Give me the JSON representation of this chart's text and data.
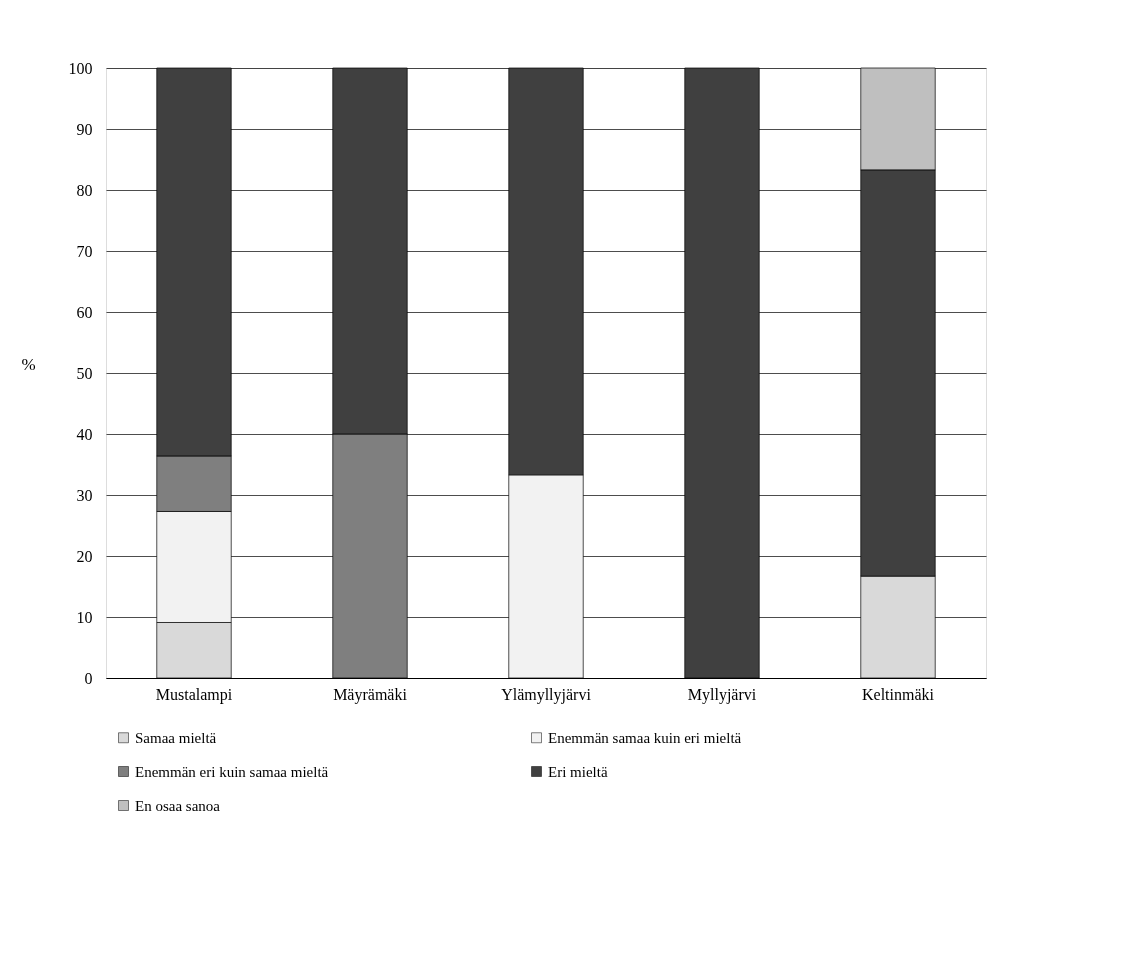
{
  "chart_data": {
    "type": "bar",
    "stacked": true,
    "ylabel": "%",
    "categories": [
      "Mustalampi",
      "Mäyrämäki",
      "Ylämyllyjärvi",
      "Myllyjärvi",
      "Keltinmäki"
    ],
    "series": [
      {
        "name": "Samaa mieltä",
        "color": "#d9d9d9",
        "values": [
          9.1,
          0,
          0,
          0,
          16.7
        ]
      },
      {
        "name": "Enemmän samaa kuin eri mieltä",
        "color": "#f2f2f2",
        "values": [
          18.2,
          0,
          33.3,
          0,
          0
        ]
      },
      {
        "name": "Enemmän eri kuin samaa mieltä",
        "color": "#7f7f7f",
        "values": [
          9.1,
          40,
          0,
          0,
          0
        ]
      },
      {
        "name": "Eri mieltä",
        "color": "#404040",
        "values": [
          63.6,
          60,
          66.7,
          100,
          66.6
        ]
      },
      {
        "name": "En osaa sanoa",
        "color": "#bfbfbf",
        "values": [
          0,
          0,
          0,
          0,
          16.7
        ]
      }
    ],
    "ylim": [
      0,
      100
    ],
    "yticks": [
      0,
      10,
      20,
      30,
      40,
      50,
      60,
      70,
      80,
      90,
      100
    ],
    "grid": "y",
    "legend": "bottom"
  }
}
